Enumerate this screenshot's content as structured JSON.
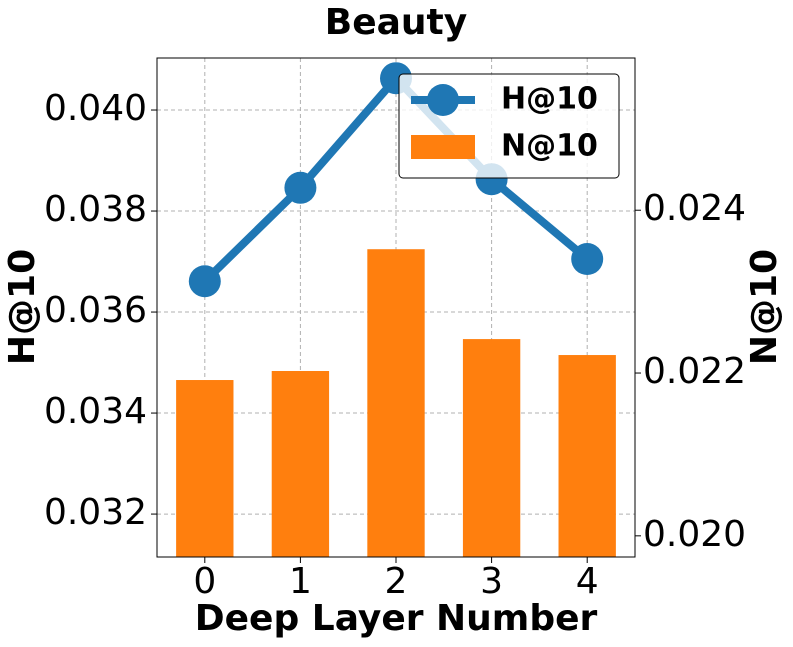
{
  "chart_data": {
    "type": "bar-line",
    "title": "Beauty",
    "x_label": "Deep Layer Number",
    "y_label": "H@10",
    "y2_label": "N@10",
    "x": [
      0,
      1,
      2,
      3,
      4
    ],
    "xlim": [
      -0.5,
      4.5
    ],
    "xticks": [
      0,
      1,
      2,
      3,
      4
    ],
    "ylim": [
      0.03115,
      0.04103
    ],
    "yticks": [
      0.032,
      0.034,
      0.036,
      0.038,
      {
        "value": 0.04,
        "label": "0.040"
      }
    ],
    "y2lim": [
      0.01974,
      0.02587
    ],
    "y2ticks": [
      {
        "value": 0.02,
        "label": "0.020"
      },
      0.022,
      0.024
    ],
    "grid": true,
    "legend": "upper right",
    "series": [
      {
        "name": "H@10",
        "kind": "line",
        "color": "#1f77b4",
        "values": [
          0.03661,
          0.03846,
          0.04063,
          0.03863,
          0.03705
        ]
      },
      {
        "name": "N@10",
        "kind": "bar",
        "axis": "y2",
        "color": "#ff7f0e",
        "values": [
          0.021914,
          0.022025,
          0.023521,
          0.022417,
          0.022221
        ]
      }
    ]
  }
}
